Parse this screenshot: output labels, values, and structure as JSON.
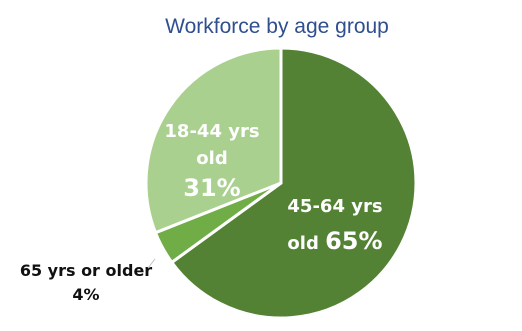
{
  "chart_data": {
    "type": "pie",
    "title": "Workforce by age group",
    "slices": [
      {
        "label_lines": [
          "45-64 yrs",
          "old 65%"
        ],
        "category": "45-64 yrs old",
        "value": 65,
        "value_text": "65%",
        "color": "#548235"
      },
      {
        "label_lines": [
          "65 yrs or older",
          "4%"
        ],
        "category": "65 yrs or older",
        "value": 4,
        "value_text": "4%",
        "color": "#70ad47"
      },
      {
        "label_lines": [
          "18-44 yrs",
          "old",
          "31%"
        ],
        "category": "18-44 yrs old",
        "value": 31,
        "value_text": "31%",
        "color": "#a9d08e"
      }
    ],
    "legend": "none"
  },
  "colors": {
    "title": "#2f4f8f",
    "slice_border": "#ffffff",
    "background": "#ffffff"
  }
}
